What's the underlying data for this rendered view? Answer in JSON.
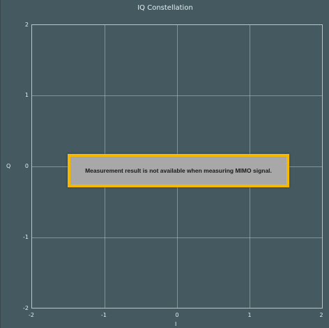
{
  "chart_data": {
    "type": "scatter",
    "title": "IQ Constellation",
    "xlabel": "I",
    "ylabel": "Q",
    "xlim": [
      -2,
      2
    ],
    "ylim": [
      -2,
      2
    ],
    "x_ticks": [
      "-2",
      "-1",
      "0",
      "1",
      "2"
    ],
    "y_ticks": [
      "2",
      "1",
      "0",
      "-1",
      "-2"
    ],
    "grid": true,
    "series": []
  },
  "message": "Measurement result is not available when measuring MIMO signal.",
  "colors": {
    "background": "#445a60",
    "grid": "#aabbc0",
    "message_border": "#f5b800",
    "message_bg": "#a8a8a8"
  }
}
